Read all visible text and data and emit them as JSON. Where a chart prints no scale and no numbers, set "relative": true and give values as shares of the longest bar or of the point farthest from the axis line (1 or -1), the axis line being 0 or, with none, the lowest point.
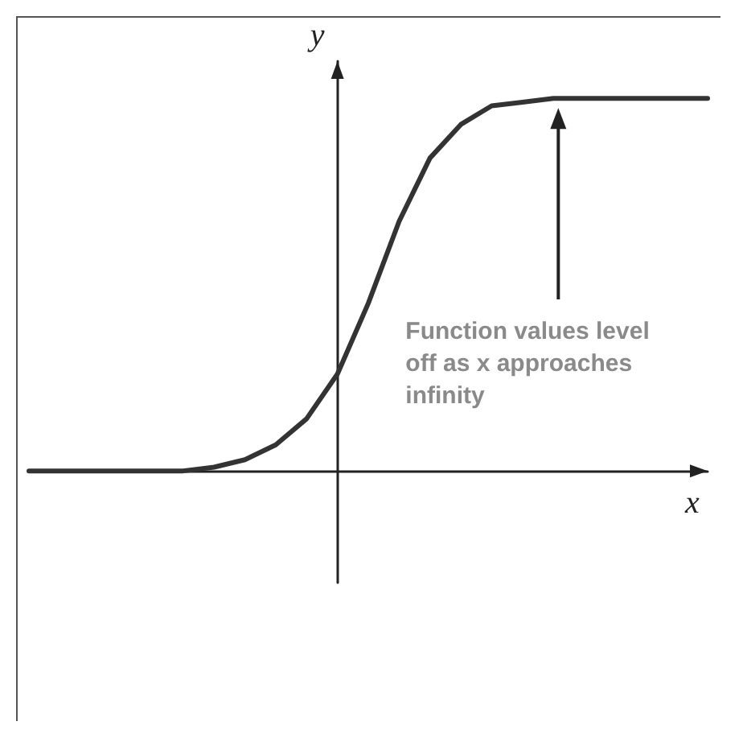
{
  "chart_data": {
    "type": "line",
    "relative": true,
    "xlabel": "x",
    "ylabel": "y",
    "color": "#333333",
    "categories": [
      null,
      null,
      null,
      null,
      null,
      null,
      null,
      null,
      null,
      null,
      null,
      null,
      null,
      null,
      null,
      null,
      null,
      null,
      null,
      null,
      null,
      null,
      null
    ],
    "values": [
      0,
      0,
      0,
      0,
      0,
      0,
      0.01,
      0.03,
      0.07,
      0.14,
      0.26,
      0.45,
      0.67,
      0.84,
      0.93,
      0.98,
      0.99,
      1,
      1,
      1,
      1,
      1,
      1
    ],
    "annotations": [
      "Function values level off as x approaches infinity"
    ],
    "grid": false,
    "marker": "none",
    "line_style": "solid"
  }
}
